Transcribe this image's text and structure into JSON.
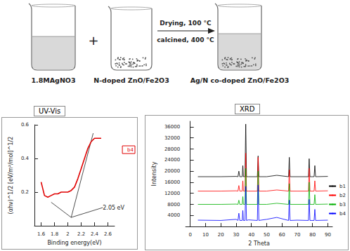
{
  "diagram": {
    "beakers": [
      {
        "label": "1.8MAgNO3"
      },
      {
        "label": "N-doped ZnO/Fe2O3"
      },
      {
        "label": "Ag/N co-doped ZnO/Fe2O3"
      }
    ],
    "operator": "+",
    "arrow_labels": [
      "Drying, 100 °C",
      "calcined, 400 °C"
    ]
  },
  "chart_data": [
    {
      "type": "line",
      "title": "UV-Vis",
      "x_label": "Binding energy(eV)",
      "y_label": "(αhν)^1/2 [eV/m²/mol]^1/2",
      "xlim": [
        1.5,
        2.7
      ],
      "xticks": [
        1.6,
        1.8,
        2.0,
        2.2,
        2.4,
        2.6
      ],
      "ylim": [
        0,
        0.6
      ],
      "yticks": [
        0.2,
        0.4,
        0.6
      ],
      "legend": "right",
      "series": [
        {
          "name": "b4",
          "color": "#e00000",
          "x": [
            1.6,
            1.65,
            1.7,
            1.75,
            1.8,
            1.85,
            1.9,
            1.95,
            2.0,
            2.05,
            2.1,
            2.15,
            2.2,
            2.25,
            2.3,
            2.35,
            2.4,
            2.45,
            2.5
          ],
          "values": [
            0.26,
            0.18,
            0.17,
            0.18,
            0.19,
            0.19,
            0.2,
            0.2,
            0.2,
            0.21,
            0.23,
            0.28,
            0.34,
            0.4,
            0.46,
            0.5,
            0.52,
            0.52,
            0.52
          ]
        }
      ],
      "tangent_lines": [
        {
          "x": [
            2.05,
            2.38
          ],
          "values": [
            0.05,
            0.55
          ]
        },
        {
          "x": [
            2.05,
            1.75
          ],
          "values": [
            0.05,
            0.14
          ]
        }
      ],
      "annotation": {
        "text": "2.05 eV",
        "x": 2.05,
        "y": 0.05
      }
    },
    {
      "type": "line",
      "title": "XRD",
      "x_label": "2 Theta",
      "y_label": "Intensity",
      "xlim": [
        -3,
        93
      ],
      "xticks": [
        0,
        10,
        20,
        30,
        40,
        50,
        60,
        70,
        80,
        90
      ],
      "ylim": [
        0,
        38000
      ],
      "yticks": [
        4000,
        8000,
        12000,
        16000,
        20000,
        24000,
        28000,
        32000,
        36000
      ],
      "legend": "right",
      "x": [
        5,
        20,
        30,
        31.2,
        31.8,
        32.4,
        34,
        34.4,
        34.8,
        35.8,
        36.3,
        36.8,
        38,
        43.9,
        44.4,
        44.9,
        50,
        56.6,
        64.3,
        64.8,
        65.3,
        70,
        77.3,
        77.8,
        78.3,
        81,
        81.5,
        82,
        90
      ],
      "series": [
        {
          "name": "b1",
          "color": "#000000",
          "values": [
            18000,
            18000,
            18100,
            18000,
            20000,
            18000,
            18000,
            22000,
            18000,
            18000,
            37000,
            18000,
            18000,
            18000,
            25500,
            18000,
            18000,
            18500,
            18000,
            25000,
            18000,
            18000,
            18000,
            24500,
            18000,
            18000,
            22000,
            18000,
            18100
          ]
        },
        {
          "name": "b2",
          "color": "#ff0000",
          "values": [
            12800,
            12800,
            12900,
            12800,
            14800,
            12800,
            12800,
            16500,
            12800,
            12800,
            26500,
            12800,
            12800,
            12800,
            25000,
            12800,
            12800,
            13200,
            12800,
            20500,
            12800,
            12800,
            12800,
            21000,
            12800,
            12800,
            16500,
            12800,
            12900
          ]
        },
        {
          "name": "b3",
          "color": "#00b000",
          "values": [
            8000,
            8000,
            8100,
            8000,
            9500,
            8000,
            8000,
            10800,
            8000,
            8000,
            21000,
            8000,
            8000,
            8000,
            20000,
            8000,
            8000,
            8400,
            8000,
            15500,
            8000,
            8000,
            8000,
            16000,
            8000,
            8000,
            11500,
            8000,
            8100
          ]
        },
        {
          "name": "b4",
          "color": "#0000ff",
          "values": [
            2300,
            2200,
            2600,
            2200,
            4800,
            2200,
            2200,
            5800,
            2200,
            2200,
            14500,
            2200,
            2400,
            2200,
            15000,
            2200,
            2600,
            3300,
            2200,
            9500,
            2200,
            2300,
            2200,
            9800,
            2200,
            2200,
            6200,
            2200,
            2300
          ]
        }
      ]
    }
  ]
}
